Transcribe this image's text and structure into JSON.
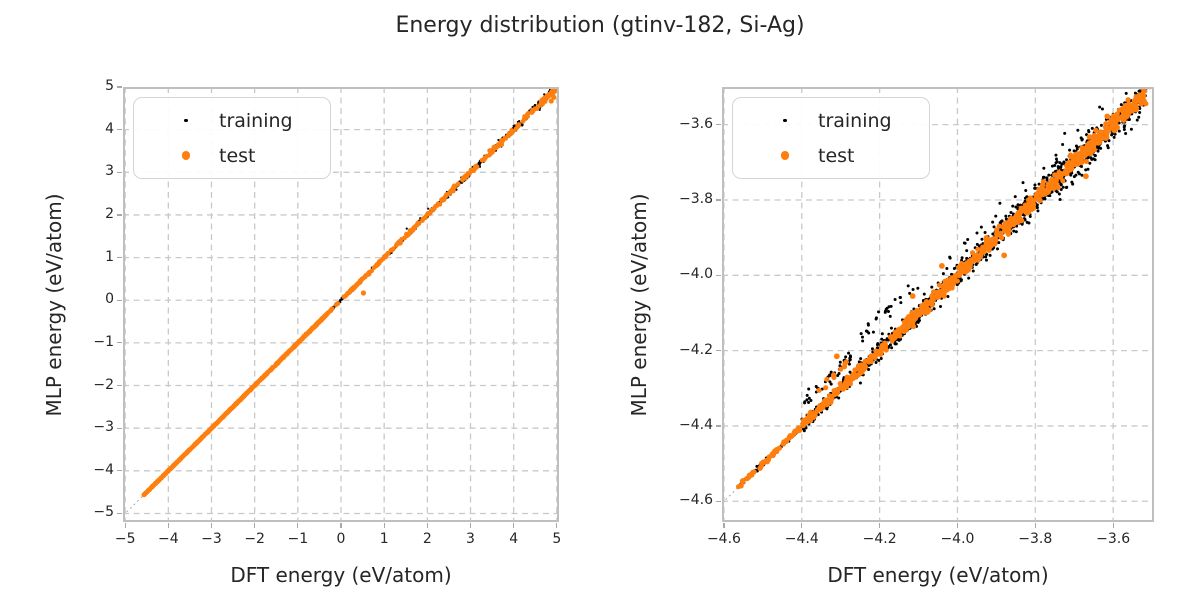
{
  "figure_title": "Energy distribution (gtinv-182, Si-Ag)",
  "colors": {
    "background": "#ffffff",
    "text": "#262626",
    "grid": "#c9c9c9",
    "frame": "#bfbfbf",
    "tick": "#a8a8a8",
    "ref_line": "#a0a0a0",
    "training": "#000000",
    "test": "#ff7f0e"
  },
  "chart_data": [
    {
      "id": "overview",
      "type": "scatter",
      "title": "",
      "xlabel": "DFT energy (eV/atom)",
      "ylabel": "MLP energy (eV/atom)",
      "xlim": [
        -5.05,
        5.05
      ],
      "ylim": [
        -5.2,
        5.0
      ],
      "grid": true,
      "legend_position": "upper-left",
      "xtick_values": [
        -5,
        -4,
        -3,
        -2,
        -1,
        0,
        1,
        2,
        3,
        4,
        5
      ],
      "xtick_labels": [
        "−5",
        "−4",
        "−3",
        "−2",
        "−1",
        "0",
        "1",
        "2",
        "3",
        "4",
        "5"
      ],
      "ytick_values": [
        -5,
        -4,
        -3,
        -2,
        -1,
        0,
        1,
        2,
        3,
        4,
        5
      ],
      "ytick_labels": [
        "−5",
        "−4",
        "−3",
        "−2",
        "−1",
        "0",
        "1",
        "2",
        "3",
        "4",
        "5"
      ],
      "ref_line": {
        "kind": "y=x",
        "color": "#a0a0a0",
        "dash": [
          2,
          3
        ]
      },
      "series": [
        {
          "name": "training",
          "color": "#000000",
          "marker_radius": 1.1,
          "legend_radius": 1.7,
          "seed": 7,
          "clusters": [
            {
              "n": 520,
              "x": [
                -4.58,
                -0.3
              ],
              "sigma": [
                0.005,
                0.012
              ]
            },
            {
              "n": 650,
              "x": [
                -0.3,
                4.55
              ],
              "sigma": [
                0.012,
                0.045
              ]
            },
            {
              "n": 85,
              "x": [
                4.55,
                4.99
              ],
              "sigma": [
                0.05,
                0.05
              ]
            },
            {
              "n": 12,
              "x": [
                1.2,
                4.4
              ],
              "sigma": [
                0.08,
                0.08
              ]
            }
          ],
          "outlier_points": []
        },
        {
          "name": "test",
          "color": "#ff7f0e",
          "marker_radius": 2.3,
          "legend_radius": 4.2,
          "seed": 13,
          "clusters": [
            {
              "n": 900,
              "x": [
                -4.57,
                -0.3
              ],
              "sigma": [
                0.004,
                0.008
              ]
            },
            {
              "n": 235,
              "x": [
                -0.3,
                4.55
              ],
              "sigma": [
                0.01,
                0.03
              ]
            },
            {
              "n": 35,
              "x": [
                4.55,
                4.97
              ],
              "sigma": [
                0.04,
                0.04
              ]
            }
          ],
          "outlier_points": [
            [
              0.52,
              0.17
            ],
            [
              4.87,
              4.67
            ],
            [
              4.93,
              4.76
            ]
          ]
        }
      ]
    },
    {
      "id": "detail",
      "type": "scatter",
      "title": "",
      "xlabel": "DFT energy (eV/atom)",
      "ylabel": "MLP energy (eV/atom)",
      "xlim": [
        -4.605,
        -3.495
      ],
      "ylim": [
        -4.655,
        -3.5
      ],
      "grid": true,
      "legend_position": "upper-left",
      "xtick_values": [
        -4.6,
        -4.4,
        -4.2,
        -4.0,
        -3.8,
        -3.6
      ],
      "xtick_labels": [
        "−4.6",
        "−4.4",
        "−4.2",
        "−4.0",
        "−3.8",
        "−3.6"
      ],
      "ytick_values": [
        -3.6,
        -3.8,
        -4.0,
        -4.2,
        -4.4,
        -4.6
      ],
      "ytick_labels": [
        "−3.6",
        "−3.8",
        "−4.0",
        "−4.2",
        "−4.4",
        "−4.6"
      ],
      "ref_line": {
        "kind": "y=x",
        "color": "#a0a0a0",
        "dash": [
          2,
          3
        ]
      },
      "series": [
        {
          "name": "training",
          "color": "#000000",
          "marker_radius": 1.5,
          "legend_radius": 1.7,
          "seed": 21,
          "clusters": [
            {
              "n": 90,
              "x": [
                -4.565,
                -4.405
              ],
              "sigma": [
                0.003,
                0.003
              ]
            },
            {
              "n": 170,
              "x": [
                -4.4,
                -4.22
              ],
              "sigma": [
                0.009,
                0.009
              ]
            },
            {
              "n": 1050,
              "x": [
                -4.26,
                -3.515
              ],
              "sigma": [
                0.013,
                0.018
              ],
              "bias": 0.8
            },
            {
              "n": 45,
              "x": [
                -4.395,
                -4.26
              ],
              "dy": 0.058,
              "sigma": [
                0.008,
                0.008
              ]
            },
            {
              "n": 28,
              "x": [
                -4.25,
                -4.1
              ],
              "dy": 0.088,
              "sigma": [
                0.01,
                0.01
              ]
            },
            {
              "n": 40,
              "x": [
                -4.06,
                -3.58
              ],
              "dy": 0.055,
              "sigma": [
                0.022,
                0.022
              ]
            },
            {
              "n": 26,
              "x": [
                -3.74,
                -3.53
              ],
              "dy": -0.042,
              "sigma": [
                0.012,
                0.012
              ]
            }
          ],
          "outlier_points": []
        },
        {
          "name": "test",
          "color": "#ff7f0e",
          "marker_radius": 2.6,
          "legend_radius": 4.2,
          "seed": 33,
          "clusters": [
            {
              "n": 55,
              "x": [
                -4.565,
                -4.405
              ],
              "sigma": [
                0.0028,
                0.0028
              ]
            },
            {
              "n": 110,
              "x": [
                -4.4,
                -4.22
              ],
              "sigma": [
                0.006,
                0.006
              ]
            },
            {
              "n": 620,
              "x": [
                -4.26,
                -3.515
              ],
              "sigma": [
                0.008,
                0.011
              ],
              "bias": 0.8
            },
            {
              "n": 10,
              "x": [
                -4.375,
                -4.285
              ],
              "dy": 0.052,
              "sigma": [
                0.005,
                0.005
              ]
            }
          ],
          "outlier_points": [
            [
              -4.31,
              -4.215
            ],
            [
              -4.115,
              -4.055
            ],
            [
              -4.04,
              -3.975
            ],
            [
              -3.88,
              -3.947
            ],
            [
              -3.67,
              -3.737
            ],
            [
              -3.615,
              -3.578
            ]
          ]
        }
      ]
    }
  ]
}
